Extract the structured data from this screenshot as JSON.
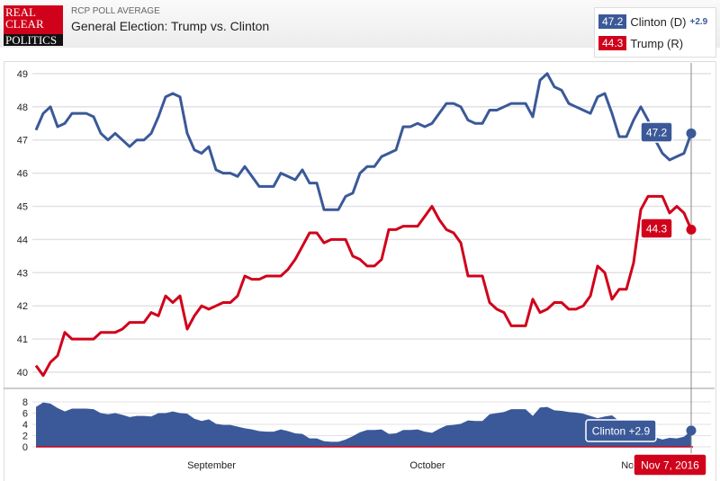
{
  "header": {
    "logo": [
      "REAL",
      "CLEAR",
      "POLITICS"
    ],
    "subtitle": "RCP POLL AVERAGE",
    "title": "General Election: Trump vs. Clinton"
  },
  "legend": {
    "clinton": {
      "value": "47.2",
      "label": "Clinton (D)",
      "diff": "+2.9"
    },
    "trump": {
      "value": "44.3",
      "label": "Trump (R)"
    }
  },
  "colors": {
    "clinton": "#3b5998",
    "trump": "#d0021b"
  },
  "tooltip": {
    "date": "Nov 7, 2016",
    "clinton": "47.2",
    "trump": "44.3",
    "spread": "Clinton +2.9"
  },
  "chart_data": {
    "type": "line",
    "ylim": [
      39.8,
      49.2
    ],
    "yticks": [
      "40",
      "41",
      "42",
      "43",
      "44",
      "45",
      "46",
      "47",
      "48",
      "49"
    ],
    "xticks": [
      "September",
      "October",
      "Nov"
    ],
    "spread_ylim": [
      0,
      8
    ],
    "spread_yticks": [
      "0",
      "2",
      "4",
      "6",
      "8"
    ],
    "dates": [
      "8/8",
      "8/9",
      "8/10",
      "8/11",
      "8/12",
      "8/13",
      "8/14",
      "8/15",
      "8/16",
      "8/17",
      "8/18",
      "8/19",
      "8/20",
      "8/21",
      "8/22",
      "8/23",
      "8/24",
      "8/25",
      "8/26",
      "8/27",
      "8/28",
      "8/29",
      "8/30",
      "8/31",
      "9/1",
      "9/2",
      "9/3",
      "9/4",
      "9/5",
      "9/6",
      "9/7",
      "9/8",
      "9/9",
      "9/10",
      "9/11",
      "9/12",
      "9/13",
      "9/14",
      "9/15",
      "9/16",
      "9/17",
      "9/18",
      "9/19",
      "9/20",
      "9/21",
      "9/22",
      "9/23",
      "9/24",
      "9/25",
      "9/26",
      "9/27",
      "9/28",
      "9/29",
      "9/30",
      "10/1",
      "10/2",
      "10/3",
      "10/4",
      "10/5",
      "10/6",
      "10/7",
      "10/8",
      "10/9",
      "10/10",
      "10/11",
      "10/12",
      "10/13",
      "10/14",
      "10/15",
      "10/16",
      "10/17",
      "10/18",
      "10/19",
      "10/20",
      "10/21",
      "10/22",
      "10/23",
      "10/24",
      "10/25",
      "10/26",
      "10/27",
      "10/28",
      "10/29",
      "10/30",
      "10/31",
      "11/1",
      "11/2",
      "11/3",
      "11/4",
      "11/5",
      "11/6",
      "11/7"
    ],
    "series": [
      {
        "name": "Clinton (D)",
        "values": [
          47.3,
          47.8,
          48.0,
          47.4,
          47.5,
          47.8,
          47.8,
          47.8,
          47.7,
          47.2,
          47.0,
          47.2,
          47.0,
          46.8,
          47.0,
          47.0,
          47.2,
          47.7,
          48.3,
          48.4,
          48.3,
          47.2,
          46.7,
          46.6,
          46.8,
          46.1,
          46.0,
          46.0,
          45.9,
          46.2,
          45.9,
          45.6,
          45.6,
          45.6,
          46.0,
          45.9,
          45.8,
          46.1,
          45.7,
          45.7,
          44.9,
          44.9,
          44.9,
          45.3,
          45.4,
          46.0,
          46.2,
          46.2,
          46.5,
          46.6,
          46.7,
          47.4,
          47.4,
          47.5,
          47.4,
          47.5,
          47.8,
          48.1,
          48.1,
          48.0,
          47.6,
          47.5,
          47.5,
          47.9,
          47.9,
          48.0,
          48.1,
          48.1,
          48.1,
          47.7,
          48.8,
          49.0,
          48.6,
          48.5,
          48.1,
          48.0,
          47.9,
          47.8,
          48.3,
          48.4,
          47.8,
          47.1,
          47.1,
          47.6,
          48.0,
          47.6,
          47.0,
          46.6,
          46.4,
          46.5,
          46.6,
          47.2
        ]
      },
      {
        "name": "Trump (R)",
        "values": [
          40.2,
          39.9,
          40.3,
          40.5,
          41.2,
          41.0,
          41.0,
          41.0,
          41.0,
          41.2,
          41.2,
          41.2,
          41.3,
          41.5,
          41.5,
          41.5,
          41.8,
          41.7,
          42.3,
          42.1,
          42.3,
          41.3,
          41.7,
          42.0,
          41.9,
          42.0,
          42.1,
          42.1,
          42.3,
          42.9,
          42.8,
          42.8,
          42.9,
          42.9,
          42.9,
          43.1,
          43.4,
          43.8,
          44.2,
          44.2,
          43.9,
          44.0,
          44.0,
          44.0,
          43.5,
          43.4,
          43.2,
          43.2,
          43.4,
          44.3,
          44.3,
          44.4,
          44.4,
          44.4,
          44.7,
          45.0,
          44.6,
          44.3,
          44.2,
          43.9,
          42.9,
          42.9,
          42.9,
          42.1,
          41.9,
          41.8,
          41.4,
          41.4,
          41.4,
          42.2,
          41.8,
          41.9,
          42.1,
          42.1,
          41.9,
          41.9,
          42.0,
          42.3,
          43.2,
          43.0,
          42.2,
          42.5,
          42.5,
          43.3,
          44.9,
          45.3,
          45.3,
          45.3,
          44.8,
          45.0,
          44.8,
          44.3
        ]
      }
    ]
  }
}
